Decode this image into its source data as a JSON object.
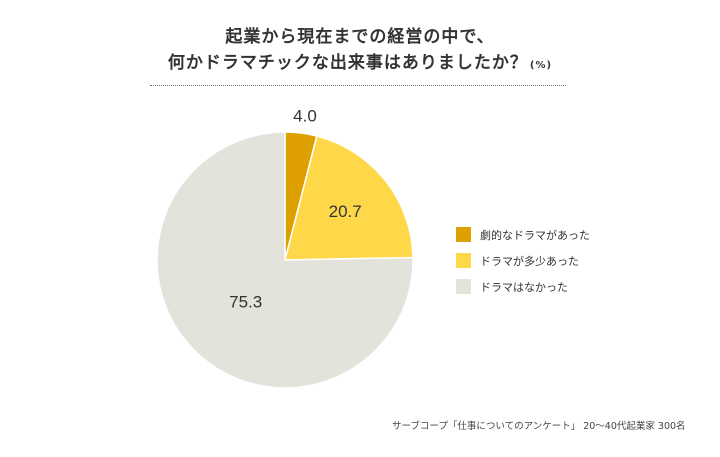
{
  "title": {
    "line1": "起業から現在までの経営の中で、",
    "line2": "何かドラマチックな出来事はありましたか？",
    "unit": "(%)"
  },
  "source": "サーブコープ「仕事についてのアンケート」 20〜40代起業家 300名",
  "chart_data": {
    "type": "pie",
    "slices": [
      {
        "label": "劇的なドラマがあった",
        "value": 4.0,
        "display": "4.0",
        "color": "#DDA000"
      },
      {
        "label": "ドラマが多少あった",
        "value": 20.7,
        "display": "20.7",
        "color": "#FFD84A"
      },
      {
        "label": "ドラマはなかった",
        "value": 75.3,
        "display": "75.3",
        "color": "#E3E3DB"
      }
    ],
    "start_angle": "12 o'clock",
    "direction": "clockwise",
    "legend_position": "right"
  }
}
